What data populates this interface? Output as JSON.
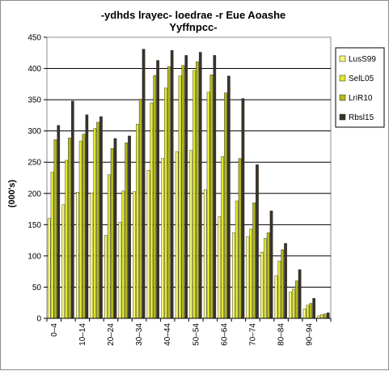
{
  "chart_data": {
    "type": "bar",
    "title": "-ydhds lrayec- loedrae -r Eue Aoashe",
    "subtitle": "Yyffnpcc-",
    "ylabel": "(000's)",
    "xlabel": "",
    "ylim": [
      0,
      450
    ],
    "ytick_step": 50,
    "grid": true,
    "legend_position": "right",
    "categories": [
      "0–4",
      "5–9",
      "10–14",
      "15–19",
      "20–24",
      "25–29",
      "30–34",
      "35–39",
      "40–44",
      "45–49",
      "50–54",
      "55–59",
      "60–64",
      "65–69",
      "70–74",
      "75–79",
      "80–84",
      "85–89",
      "90–94",
      "95+"
    ],
    "category_labels": [
      "0–4",
      "",
      "10–14",
      "",
      "20–24",
      "",
      "30–34",
      "",
      "40–44",
      "",
      "50–54",
      "",
      "60–64",
      "",
      "70–74",
      "",
      "80–84",
      "",
      "90–94",
      ""
    ],
    "series": [
      {
        "name": "LusS99",
        "color": "#f4f57a",
        "values": [
          160,
          182,
          202,
          201,
          133,
          154,
          203,
          237,
          256,
          267,
          269,
          206,
          163,
          137,
          131,
          106,
          68,
          42,
          15,
          4
        ]
      },
      {
        "name": "SelL05",
        "color": "#e2e82c",
        "values": [
          234,
          253,
          284,
          304,
          230,
          204,
          311,
          345,
          369,
          388,
          397,
          362,
          259,
          188,
          143,
          128,
          92,
          47,
          21,
          6
        ]
      },
      {
        "name": "LriR10",
        "color": "#b1b81b",
        "values": [
          286,
          289,
          295,
          314,
          272,
          281,
          351,
          389,
          403,
          405,
          411,
          390,
          361,
          256,
          185,
          137,
          110,
          60,
          24,
          7
        ]
      },
      {
        "name": "Rbsl15",
        "color": "#3a3328",
        "values": [
          309,
          348,
          326,
          323,
          288,
          292,
          431,
          413,
          429,
          421,
          426,
          421,
          388,
          352,
          246,
          172,
          120,
          78,
          32,
          9
        ]
      }
    ]
  }
}
